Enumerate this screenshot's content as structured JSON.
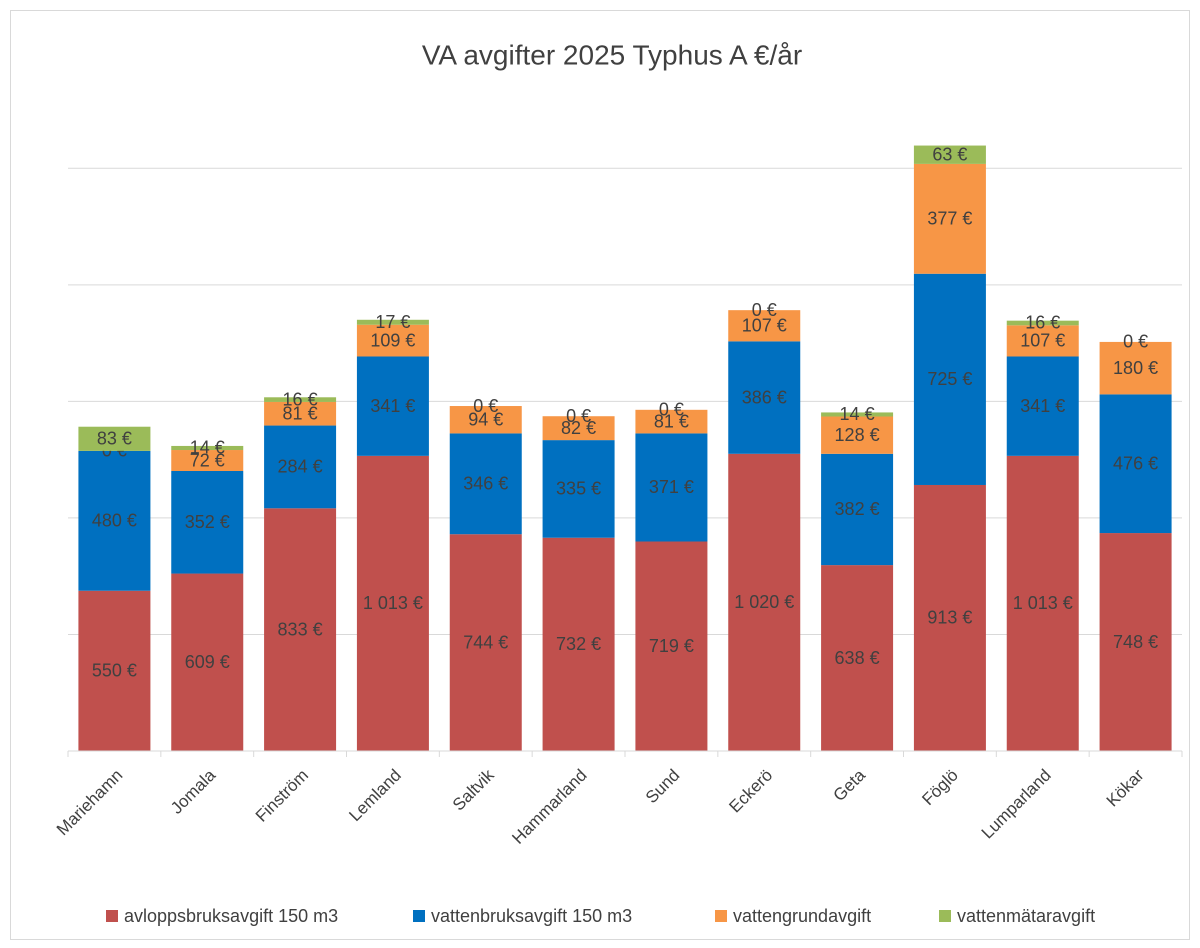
{
  "chart_data": {
    "type": "stacked_bar",
    "title": "VA avgifter 2025 Typhus A €/år",
    "categories": [
      "Mariehamn",
      "Jomala",
      "Finström",
      "Lemland",
      "Saltvik",
      "Hammarland",
      "Sund",
      "Eckerö",
      "Geta",
      "Föglö",
      "Lumparland",
      "Kökar"
    ],
    "series": [
      {
        "name": "avloppsbruksavgift 150 m3",
        "color": "#c0504d",
        "values": [
          550,
          609,
          833,
          1013,
          744,
          732,
          719,
          1020,
          638,
          913,
          1013,
          748
        ],
        "value_labels": [
          "550 €",
          "609 €",
          "833 €",
          "1 013 €",
          "744 €",
          "732 €",
          "719 €",
          "1 020 €",
          "638 €",
          "913 €",
          "1 013 €",
          "748 €"
        ]
      },
      {
        "name": "vattenbruksavgift 150 m3",
        "color": "#0070c0",
        "values": [
          480,
          352,
          284,
          341,
          346,
          335,
          371,
          386,
          382,
          725,
          341,
          476
        ],
        "value_labels": [
          "480 €",
          "352 €",
          "284 €",
          "341 €",
          "346 €",
          "335 €",
          "371 €",
          "386 €",
          "382 €",
          "725 €",
          "341 €",
          "476 €"
        ]
      },
      {
        "name": "vattengrundavgift",
        "color": "#f79646",
        "values": [
          0,
          72,
          81,
          109,
          94,
          82,
          81,
          107,
          128,
          377,
          107,
          180
        ],
        "value_labels": [
          "0 €",
          "72 €",
          "81 €",
          "109 €",
          "94 €",
          "82 €",
          "81 €",
          "107 €",
          "128 €",
          "377 €",
          "107 €",
          "180 €"
        ]
      },
      {
        "name": "vattenmätaravgift",
        "color": "#9bbb59",
        "values": [
          83,
          14,
          16,
          17,
          0,
          0,
          0,
          0,
          14,
          63,
          16,
          0
        ],
        "value_labels": [
          "83 €",
          "14 €",
          "16 €",
          "17 €",
          "0 €",
          "0 €",
          "0 €",
          "0 €",
          "14 €",
          "63 €",
          "16 €",
          "0 €"
        ]
      }
    ],
    "ylim": [
      0,
      2200
    ],
    "yticks": [
      0,
      400,
      800,
      1200,
      1600,
      2000
    ],
    "grid": true,
    "legend": "bottom"
  }
}
